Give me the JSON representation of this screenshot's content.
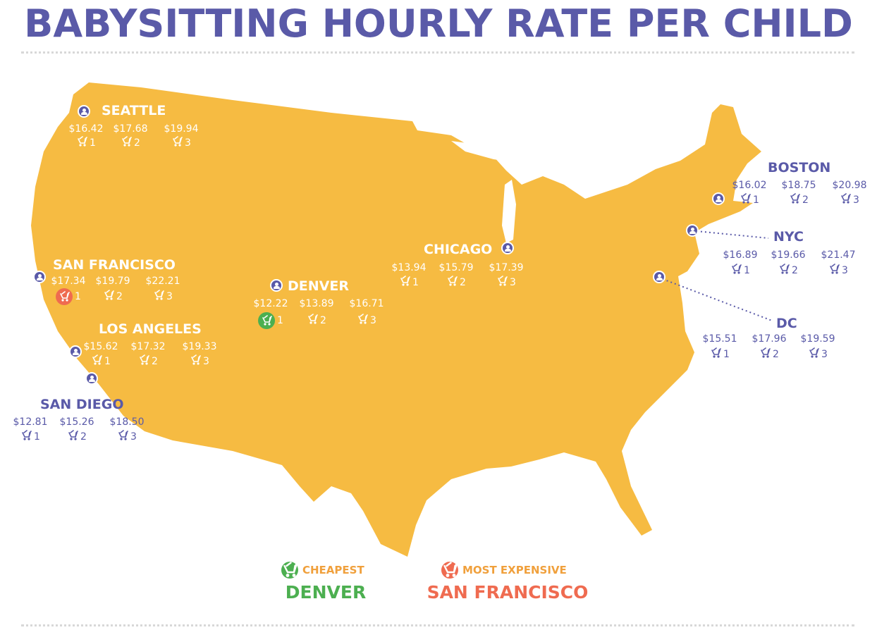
{
  "title": "BABYSITTING HOURLY RATE PER CHILD",
  "colors": {
    "title": "#5a5aa8",
    "map": "#f6bb42",
    "pin": "#5a5aa8",
    "cheapest": "#4caf50",
    "most_expensive": "#ef6b50",
    "legend_label": "#f0a03c"
  },
  "icons": {
    "pin": "person-pin-icon",
    "children": "stroller-icon"
  },
  "cities": [
    {
      "name": "SEATTLE",
      "prices": [
        "$16.42",
        "$17.68",
        "$19.94"
      ],
      "children": [
        "1",
        "2",
        "3"
      ]
    },
    {
      "name": "SAN FRANCISCO",
      "prices": [
        "$17.34",
        "$19.79",
        "$22.21"
      ],
      "children": [
        "1",
        "2",
        "3"
      ],
      "highlight": "most_expensive"
    },
    {
      "name": "LOS ANGELES",
      "prices": [
        "$15.62",
        "$17.32",
        "$19.33"
      ],
      "children": [
        "1",
        "2",
        "3"
      ]
    },
    {
      "name": "SAN DIEGO",
      "prices": [
        "$12.81",
        "$15.26",
        "$18.50"
      ],
      "children": [
        "1",
        "2",
        "3"
      ]
    },
    {
      "name": "DENVER",
      "prices": [
        "$12.22",
        "$13.89",
        "$16.71"
      ],
      "children": [
        "1",
        "2",
        "3"
      ],
      "highlight": "cheapest"
    },
    {
      "name": "CHICAGO",
      "prices": [
        "$13.94",
        "$15.79",
        "$17.39"
      ],
      "children": [
        "1",
        "2",
        "3"
      ]
    },
    {
      "name": "BOSTON",
      "prices": [
        "$16.02",
        "$18.75",
        "$20.98"
      ],
      "children": [
        "1",
        "2",
        "3"
      ]
    },
    {
      "name": "NYC",
      "prices": [
        "$16.89",
        "$19.66",
        "$21.47"
      ],
      "children": [
        "1",
        "2",
        "3"
      ]
    },
    {
      "name": "DC",
      "prices": [
        "$15.51",
        "$17.96",
        "$19.59"
      ],
      "children": [
        "1",
        "2",
        "3"
      ]
    }
  ],
  "legend": {
    "cheapest_label": "CHEAPEST",
    "cheapest_city": "DENVER",
    "expensive_label": "MOST EXPENSIVE",
    "expensive_city": "SAN FRANCISCO"
  }
}
